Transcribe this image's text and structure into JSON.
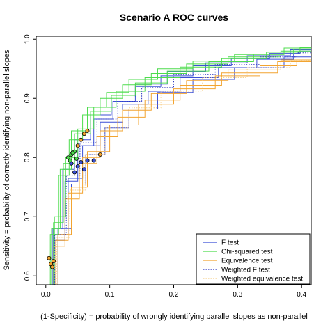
{
  "chart_data": {
    "type": "line",
    "title": "Scenario A ROC curves",
    "xlabel": "(1-Specificity) = probability of wrongly identifying parallel slopes as non-parallel",
    "ylabel": "Sensitivity = probability of correctly identifying non-parallel slopes",
    "xlim": [
      -0.015,
      0.415
    ],
    "ylim": [
      0.585,
      1.005
    ],
    "x_ticks": [
      0.0,
      0.1,
      0.2,
      0.3,
      0.4
    ],
    "x_tick_labels": [
      "0.0",
      "0.1",
      "0.2",
      "0.3",
      "0.4"
    ],
    "y_ticks": [
      0.6,
      0.7,
      0.8,
      0.9,
      1.0
    ],
    "y_tick_labels": [
      "0.6",
      "0.7",
      "0.8",
      "0.9",
      "1.0"
    ],
    "grid": false,
    "legend_position": "bottom-right",
    "series": [
      {
        "name": "F test",
        "color": "#3b4fd6",
        "dash": "solid",
        "curves": [
          [
            [
              0.005,
              0.585
            ],
            [
              0.02,
              0.66
            ],
            [
              0.04,
              0.76
            ],
            [
              0.06,
              0.82
            ],
            [
              0.09,
              0.865
            ],
            [
              0.12,
              0.895
            ],
            [
              0.16,
              0.92
            ],
            [
              0.2,
              0.938
            ],
            [
              0.26,
              0.955
            ],
            [
              0.32,
              0.967
            ],
            [
              0.38,
              0.976
            ],
            [
              0.415,
              0.98
            ]
          ],
          [
            [
              0.007,
              0.585
            ],
            [
              0.025,
              0.67
            ],
            [
              0.045,
              0.765
            ],
            [
              0.07,
              0.82
            ],
            [
              0.1,
              0.86
            ],
            [
              0.14,
              0.89
            ],
            [
              0.18,
              0.912
            ],
            [
              0.24,
              0.935
            ],
            [
              0.3,
              0.952
            ],
            [
              0.36,
              0.966
            ],
            [
              0.415,
              0.975
            ]
          ],
          [
            [
              0.004,
              0.585
            ],
            [
              0.018,
              0.68
            ],
            [
              0.035,
              0.78
            ],
            [
              0.055,
              0.83
            ],
            [
              0.085,
              0.872
            ],
            [
              0.12,
              0.902
            ],
            [
              0.16,
              0.924
            ],
            [
              0.22,
              0.945
            ],
            [
              0.28,
              0.96
            ],
            [
              0.35,
              0.972
            ],
            [
              0.415,
              0.982
            ]
          ],
          [
            [
              0.008,
              0.585
            ],
            [
              0.03,
              0.68
            ],
            [
              0.05,
              0.755
            ],
            [
              0.075,
              0.805
            ],
            [
              0.11,
              0.85
            ],
            [
              0.15,
              0.882
            ],
            [
              0.2,
              0.91
            ],
            [
              0.26,
              0.932
            ],
            [
              0.33,
              0.952
            ],
            [
              0.415,
              0.97
            ]
          ]
        ],
        "points": [
          [
            0.04,
            0.79
          ],
          [
            0.05,
            0.785
          ],
          [
            0.055,
            0.792
          ],
          [
            0.06,
            0.78
          ],
          [
            0.065,
            0.795
          ],
          [
            0.075,
            0.795
          ],
          [
            0.045,
            0.775
          ]
        ]
      },
      {
        "name": "Chi-squared test",
        "color": "#4ddc4d",
        "dash": "solid",
        "curves": [
          [
            [
              0.003,
              0.585
            ],
            [
              0.015,
              0.68
            ],
            [
              0.03,
              0.78
            ],
            [
              0.05,
              0.845
            ],
            [
              0.08,
              0.885
            ],
            [
              0.11,
              0.91
            ],
            [
              0.15,
              0.932
            ],
            [
              0.2,
              0.95
            ],
            [
              0.26,
              0.963
            ],
            [
              0.33,
              0.974
            ],
            [
              0.415,
              0.985
            ]
          ],
          [
            [
              0.004,
              0.585
            ],
            [
              0.02,
              0.69
            ],
            [
              0.035,
              0.79
            ],
            [
              0.055,
              0.84
            ],
            [
              0.085,
              0.878
            ],
            [
              0.12,
              0.905
            ],
            [
              0.16,
              0.926
            ],
            [
              0.22,
              0.946
            ],
            [
              0.29,
              0.962
            ],
            [
              0.36,
              0.975
            ],
            [
              0.415,
              0.983
            ]
          ],
          [
            [
              0.002,
              0.585
            ],
            [
              0.012,
              0.67
            ],
            [
              0.028,
              0.77
            ],
            [
              0.045,
              0.83
            ],
            [
              0.07,
              0.872
            ],
            [
              0.1,
              0.9
            ],
            [
              0.14,
              0.923
            ],
            [
              0.19,
              0.942
            ],
            [
              0.25,
              0.958
            ],
            [
              0.32,
              0.97
            ],
            [
              0.415,
              0.98
            ]
          ],
          [
            [
              0.005,
              0.585
            ],
            [
              0.022,
              0.7
            ],
            [
              0.04,
              0.8
            ],
            [
              0.06,
              0.848
            ],
            [
              0.09,
              0.885
            ],
            [
              0.13,
              0.912
            ],
            [
              0.18,
              0.935
            ],
            [
              0.24,
              0.953
            ],
            [
              0.31,
              0.967
            ],
            [
              0.38,
              0.978
            ],
            [
              0.415,
              0.986
            ]
          ]
        ],
        "points": [
          [
            0.035,
            0.8
          ],
          [
            0.04,
            0.805
          ],
          [
            0.045,
            0.81
          ],
          [
            0.038,
            0.795
          ],
          [
            0.042,
            0.808
          ],
          [
            0.048,
            0.798
          ]
        ]
      },
      {
        "name": "Equivalence test",
        "color": "#f2a431",
        "dash": "solid",
        "curves": [
          [
            [
              0.006,
              0.585
            ],
            [
              0.025,
              0.66
            ],
            [
              0.045,
              0.74
            ],
            [
              0.07,
              0.8
            ],
            [
              0.1,
              0.845
            ],
            [
              0.14,
              0.88
            ],
            [
              0.19,
              0.908
            ],
            [
              0.25,
              0.93
            ],
            [
              0.32,
              0.948
            ],
            [
              0.415,
              0.965
            ]
          ],
          [
            [
              0.008,
              0.585
            ],
            [
              0.03,
              0.67
            ],
            [
              0.05,
              0.75
            ],
            [
              0.08,
              0.81
            ],
            [
              0.12,
              0.855
            ],
            [
              0.17,
              0.89
            ],
            [
              0.23,
              0.916
            ],
            [
              0.3,
              0.938
            ],
            [
              0.37,
              0.955
            ],
            [
              0.415,
              0.963
            ]
          ],
          [
            [
              0.005,
              0.585
            ],
            [
              0.02,
              0.65
            ],
            [
              0.04,
              0.73
            ],
            [
              0.065,
              0.79
            ],
            [
              0.095,
              0.835
            ],
            [
              0.13,
              0.868
            ],
            [
              0.18,
              0.897
            ],
            [
              0.24,
              0.922
            ],
            [
              0.31,
              0.943
            ],
            [
              0.415,
              0.962
            ]
          ]
        ],
        "points": [
          [
            0.005,
            0.63
          ],
          [
            0.008,
            0.62
          ],
          [
            0.01,
            0.615
          ],
          [
            0.012,
            0.625
          ],
          [
            0.05,
            0.82
          ],
          [
            0.055,
            0.83
          ],
          [
            0.06,
            0.84
          ],
          [
            0.065,
            0.845
          ],
          [
            0.085,
            0.805
          ]
        ]
      },
      {
        "name": "Weighted F test",
        "color": "#2a35c0",
        "dash": "dotted",
        "curves": [
          [
            [
              0.006,
              0.585
            ],
            [
              0.022,
              0.67
            ],
            [
              0.042,
              0.77
            ],
            [
              0.065,
              0.825
            ],
            [
              0.095,
              0.865
            ],
            [
              0.13,
              0.895
            ],
            [
              0.17,
              0.918
            ],
            [
              0.23,
              0.94
            ],
            [
              0.3,
              0.957
            ],
            [
              0.37,
              0.97
            ],
            [
              0.415,
              0.977
            ]
          ]
        ],
        "points": []
      },
      {
        "name": "Weighted equivalence test",
        "color": "#f7d08a",
        "dash": "dotted",
        "curves": [
          [
            [
              0.007,
              0.585
            ],
            [
              0.027,
              0.665
            ],
            [
              0.048,
              0.745
            ],
            [
              0.075,
              0.805
            ],
            [
              0.11,
              0.85
            ],
            [
              0.15,
              0.884
            ],
            [
              0.21,
              0.912
            ],
            [
              0.28,
              0.935
            ],
            [
              0.35,
              0.952
            ],
            [
              0.415,
              0.964
            ]
          ]
        ],
        "points": []
      }
    ]
  }
}
